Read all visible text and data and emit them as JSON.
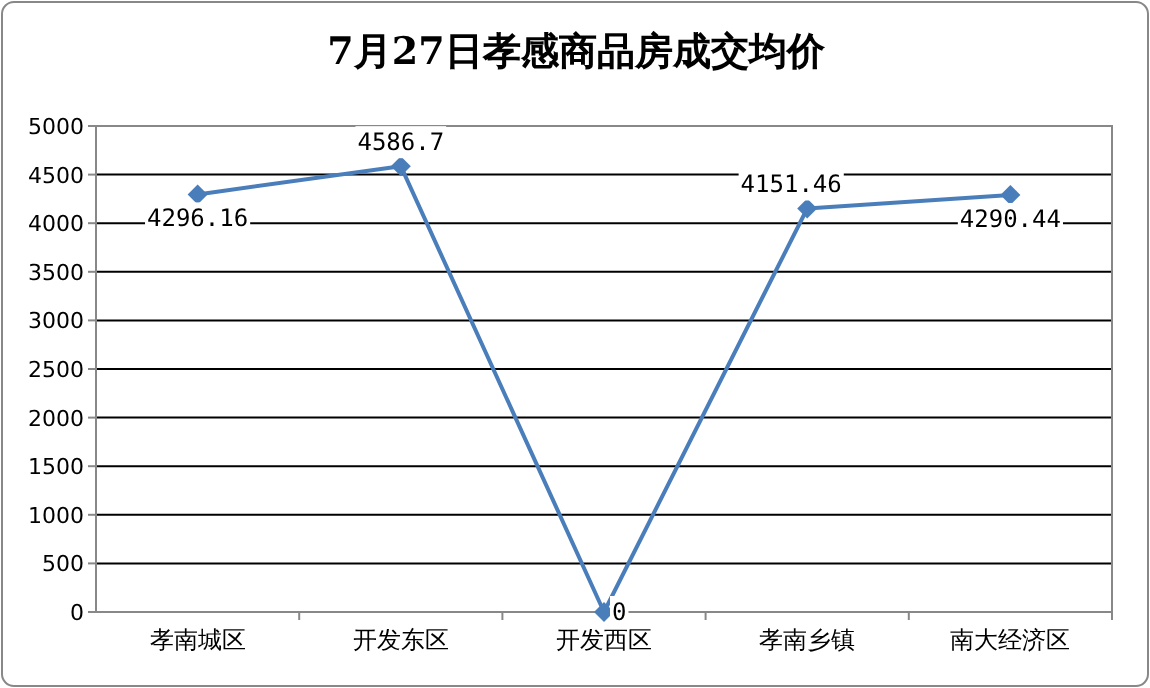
{
  "chart_data": {
    "type": "line",
    "title": "7月27日孝感商品房成交均价",
    "categories": [
      "孝南城区",
      "开发东区",
      "开发西区",
      "孝南乡镇",
      "南大经济区"
    ],
    "series": [
      {
        "color": "#4a7ebb",
        "values": [
          4296.16,
          4586.7,
          0,
          4151.46,
          4290.44
        ]
      }
    ],
    "ylim": [
      0,
      5000
    ],
    "yticks": [
      0,
      500,
      1000,
      1500,
      2000,
      2500,
      3000,
      3500,
      4000,
      4500,
      5000
    ],
    "grid": "y",
    "marker": "diamond",
    "line_style": "solid",
    "data_labels": true
  }
}
